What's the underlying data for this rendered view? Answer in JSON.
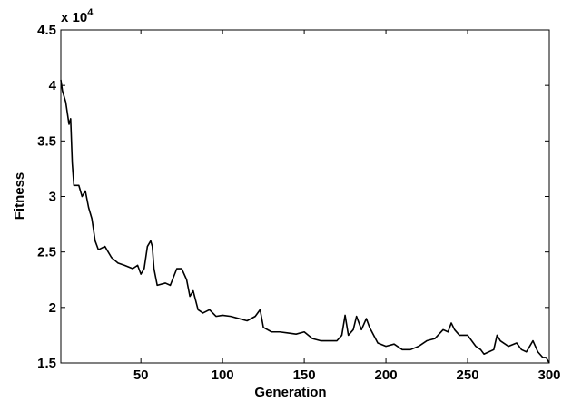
{
  "chart_data": {
    "type": "line",
    "x_label": "Generation",
    "y_label": "Fitness",
    "y_scale_label": "x 10",
    "y_scale_exponent": "4",
    "xlim": [
      1,
      300
    ],
    "ylim": [
      1.5,
      4.5
    ],
    "xticks": [
      50,
      100,
      150,
      200,
      250,
      300
    ],
    "yticks": [
      1.5,
      2,
      2.5,
      3,
      3.5,
      4,
      4.5
    ],
    "grid": false,
    "box": true,
    "series": [
      {
        "color": "#000000",
        "x": [
          1,
          2,
          4,
          6,
          7,
          8,
          9,
          12,
          14,
          16,
          18,
          20,
          22,
          24,
          28,
          32,
          36,
          40,
          45,
          48,
          50,
          52,
          54,
          56,
          57,
          58,
          60,
          65,
          68,
          72,
          75,
          78,
          80,
          82,
          85,
          88,
          92,
          96,
          100,
          105,
          110,
          115,
          120,
          123,
          125,
          130,
          135,
          140,
          145,
          150,
          155,
          160,
          165,
          170,
          173,
          175,
          177,
          180,
          182,
          185,
          188,
          190,
          195,
          200,
          205,
          210,
          215,
          220,
          225,
          230,
          235,
          238,
          240,
          242,
          245,
          250,
          255,
          258,
          260,
          263,
          266,
          268,
          270,
          275,
          280,
          283,
          286,
          290,
          293,
          296,
          298,
          300
        ],
        "values": [
          4.05,
          3.95,
          3.85,
          3.65,
          3.7,
          3.3,
          3.1,
          3.1,
          3.0,
          3.05,
          2.9,
          2.8,
          2.6,
          2.52,
          2.55,
          2.45,
          2.4,
          2.38,
          2.35,
          2.38,
          2.3,
          2.35,
          2.55,
          2.6,
          2.55,
          2.35,
          2.2,
          2.22,
          2.2,
          2.35,
          2.35,
          2.25,
          2.1,
          2.15,
          1.98,
          1.95,
          1.98,
          1.92,
          1.93,
          1.92,
          1.9,
          1.88,
          1.92,
          1.98,
          1.82,
          1.78,
          1.78,
          1.77,
          1.76,
          1.78,
          1.72,
          1.7,
          1.7,
          1.7,
          1.75,
          1.93,
          1.75,
          1.8,
          1.92,
          1.8,
          1.9,
          1.82,
          1.68,
          1.65,
          1.67,
          1.62,
          1.62,
          1.65,
          1.7,
          1.72,
          1.8,
          1.78,
          1.86,
          1.8,
          1.75,
          1.75,
          1.65,
          1.62,
          1.58,
          1.6,
          1.62,
          1.75,
          1.7,
          1.65,
          1.68,
          1.62,
          1.6,
          1.7,
          1.6,
          1.55,
          1.55,
          1.5
        ]
      }
    ]
  }
}
